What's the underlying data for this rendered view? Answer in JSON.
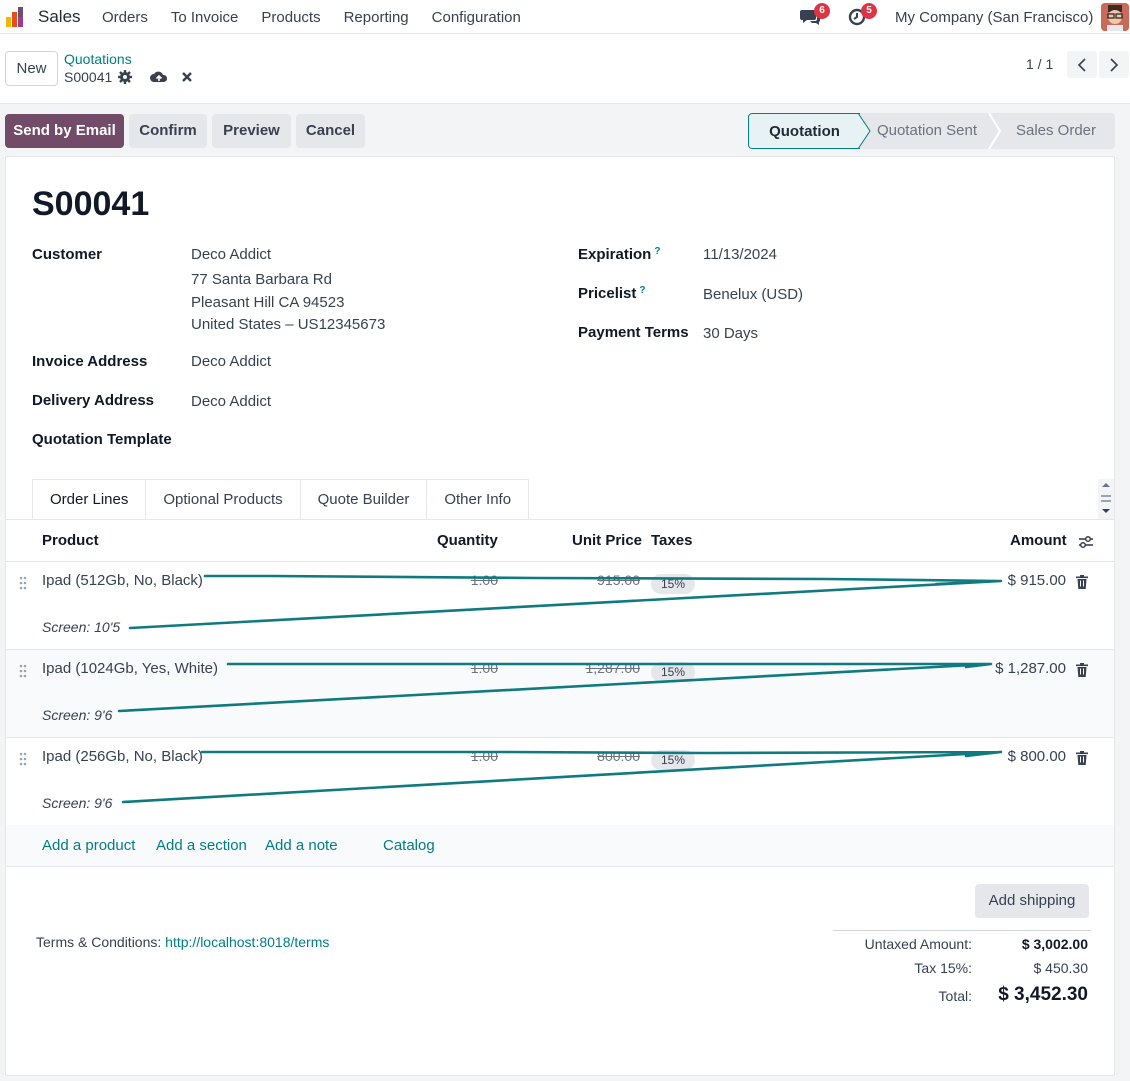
{
  "topnav": {
    "app_name": "Sales",
    "menu": [
      "Orders",
      "To Invoice",
      "Products",
      "Reporting",
      "Configuration"
    ],
    "messages_count": "6",
    "activities_count": "5",
    "company": "My Company (San Francisco)"
  },
  "control": {
    "new_label": "New",
    "breadcrumb": "Quotations",
    "record": "S00041",
    "pager": "1 / 1"
  },
  "actions": {
    "send_email": "Send by Email",
    "confirm": "Confirm",
    "preview": "Preview",
    "cancel": "Cancel"
  },
  "status": {
    "stages": [
      "Quotation",
      "Quotation Sent",
      "Sales Order"
    ],
    "active": "Quotation"
  },
  "form": {
    "title": "S00041",
    "customer_label": "Customer",
    "customer_name": "Deco Addict",
    "address_1": "77 Santa Barbara Rd",
    "address_2": "Pleasant Hill CA 94523",
    "address_3": "United States – US12345673",
    "invoice_label": "Invoice Address",
    "invoice_value": "Deco Addict",
    "delivery_label": "Delivery Address",
    "delivery_value": "Deco Addict",
    "template_label": "Quotation Template",
    "expiration_label": "Expiration",
    "expiration_value": "11/13/2024",
    "pricelist_label": "Pricelist",
    "pricelist_value": "Benelux (USD)",
    "payment_label": "Payment Terms",
    "payment_value": "30 Days",
    "help_mark": "?"
  },
  "tabs": [
    "Order Lines",
    "Optional Products",
    "Quote Builder",
    "Other Info"
  ],
  "table": {
    "headers": {
      "product": "Product",
      "quantity": "Quantity",
      "unit_price": "Unit Price",
      "taxes": "Taxes",
      "amount": "Amount"
    },
    "rows": [
      {
        "product": "Ipad (512Gb, No, Black)",
        "quantity": "1.00",
        "unit_price": "915.00",
        "tax": "15%",
        "amount": "$ 915.00",
        "note": "Screen: 10'5"
      },
      {
        "product": "Ipad (1024Gb, Yes, White)",
        "quantity": "1.00",
        "unit_price": "1,287.00",
        "tax": "15%",
        "amount": "$ 1,287.00",
        "note": "Screen: 9'6"
      },
      {
        "product": "Ipad (256Gb, No, Black)",
        "quantity": "1.00",
        "unit_price": "800.00",
        "tax": "15%",
        "amount": "$ 800.00",
        "note": "Screen: 9'6"
      }
    ],
    "add_product": "Add a product",
    "add_section": "Add a section",
    "add_note": "Add a note",
    "catalog": "Catalog"
  },
  "footer": {
    "add_shipping": "Add shipping",
    "terms_label": "Terms & Conditions:",
    "terms_link": "http://localhost:8018/terms",
    "untaxed_label": "Untaxed Amount:",
    "untaxed_value": "$ 3,002.00",
    "tax_label": "Tax 15%:",
    "tax_value": "$ 450.30",
    "total_label": "Total:",
    "total_value": "$ 3,452.30"
  },
  "colors": {
    "brand": "#714b67",
    "accent": "#017e84",
    "badge": "#dc3545",
    "scribble": "#0f7a7f"
  },
  "icons": [
    "sales-logo-icon",
    "chat-icon",
    "clock-icon",
    "gear-icon",
    "cloud-upload-icon",
    "close-icon",
    "chevron-left-icon",
    "chevron-right-icon",
    "drag-handle-icon",
    "trash-icon",
    "column-settings-icon"
  ]
}
